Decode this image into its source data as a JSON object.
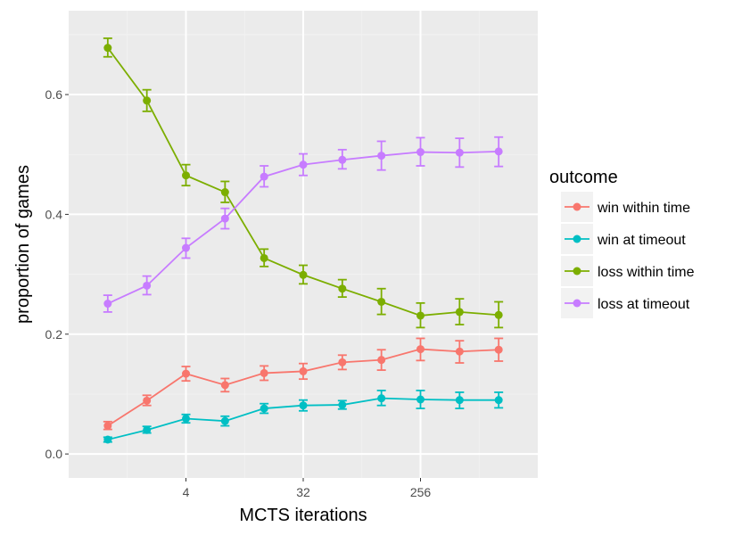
{
  "chart_data": {
    "type": "line",
    "xlabel": "MCTS iterations",
    "ylabel": "proportion of games",
    "x_scale": "log2",
    "x": [
      1,
      2,
      4,
      8,
      16,
      32,
      64,
      128,
      256,
      512,
      1024
    ],
    "xticks": [
      4,
      32,
      256
    ],
    "xtick_labels": [
      "4",
      "32",
      "256"
    ],
    "xlim": [
      0.5,
      2048
    ],
    "ylim": [
      -0.04,
      0.74
    ],
    "yticks": [
      0.0,
      0.2,
      0.4,
      0.6
    ],
    "ytick_labels": [
      "0.0",
      "0.2",
      "0.4",
      "0.6"
    ],
    "grid": true,
    "legend": {
      "title": "outcome",
      "placement": "right"
    },
    "series": [
      {
        "name": "win within time",
        "color": "#F8766D",
        "values": [
          0.047,
          0.089,
          0.134,
          0.115,
          0.135,
          0.138,
          0.153,
          0.157,
          0.175,
          0.171,
          0.174
        ],
        "error_low": [
          0.041,
          0.081,
          0.122,
          0.104,
          0.123,
          0.125,
          0.141,
          0.14,
          0.156,
          0.152,
          0.155
        ],
        "error_high": [
          0.054,
          0.098,
          0.146,
          0.126,
          0.147,
          0.151,
          0.165,
          0.174,
          0.193,
          0.189,
          0.193
        ]
      },
      {
        "name": "win at timeout",
        "color": "#00BFC4",
        "values": [
          0.024,
          0.04,
          0.059,
          0.055,
          0.076,
          0.081,
          0.082,
          0.093,
          0.091,
          0.09,
          0.09
        ],
        "error_low": [
          0.02,
          0.035,
          0.052,
          0.047,
          0.068,
          0.072,
          0.075,
          0.081,
          0.076,
          0.076,
          0.077
        ],
        "error_high": [
          0.028,
          0.046,
          0.066,
          0.063,
          0.084,
          0.09,
          0.089,
          0.106,
          0.106,
          0.103,
          0.103
        ]
      },
      {
        "name": "loss within time",
        "color": "#7CAE00",
        "values": [
          0.678,
          0.59,
          0.465,
          0.437,
          0.327,
          0.299,
          0.276,
          0.254,
          0.231,
          0.237,
          0.232
        ],
        "error_low": [
          0.663,
          0.572,
          0.448,
          0.42,
          0.313,
          0.284,
          0.262,
          0.233,
          0.211,
          0.216,
          0.211
        ],
        "error_high": [
          0.694,
          0.608,
          0.483,
          0.455,
          0.342,
          0.315,
          0.291,
          0.276,
          0.252,
          0.259,
          0.254
        ]
      },
      {
        "name": "loss at timeout",
        "color": "#C77CFF",
        "values": [
          0.251,
          0.281,
          0.344,
          0.393,
          0.463,
          0.483,
          0.491,
          0.498,
          0.504,
          0.503,
          0.505
        ],
        "error_low": [
          0.237,
          0.266,
          0.327,
          0.376,
          0.446,
          0.465,
          0.476,
          0.474,
          0.481,
          0.479,
          0.48
        ],
        "error_high": [
          0.265,
          0.297,
          0.36,
          0.41,
          0.481,
          0.501,
          0.508,
          0.522,
          0.528,
          0.527,
          0.529
        ]
      }
    ]
  }
}
